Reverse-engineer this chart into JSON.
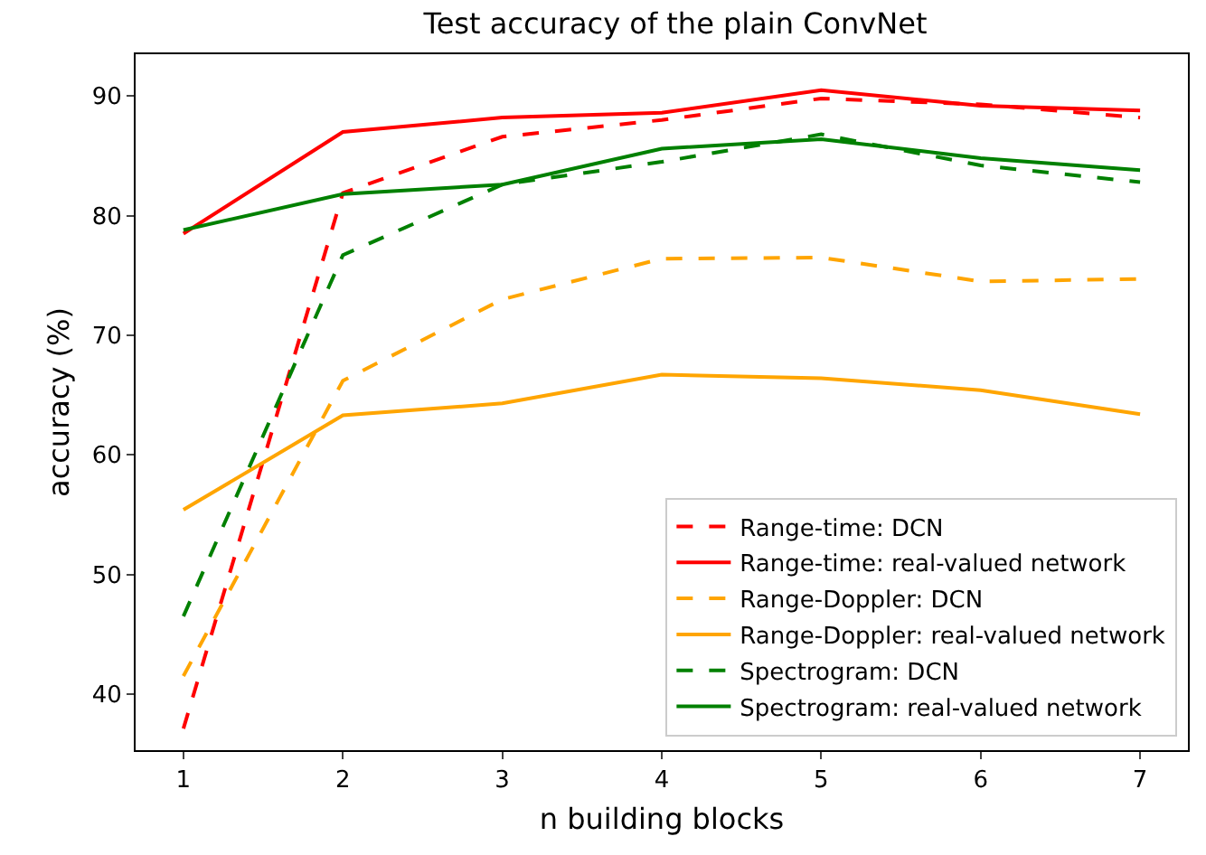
{
  "chart_data": {
    "type": "line",
    "title": "Test accuracy of the plain ConvNet",
    "xlabel": "n building blocks",
    "ylabel": "accuracy (%)",
    "x": [
      1,
      2,
      3,
      4,
      5,
      6,
      7
    ],
    "series": [
      {
        "name": "Range-time: DCN",
        "color": "#ff0000",
        "line_style": "dashed",
        "values": [
          37.1,
          81.9,
          86.6,
          88.0,
          89.8,
          89.3,
          88.2
        ]
      },
      {
        "name": "Range-time: real-valued network",
        "color": "#ff0000",
        "line_style": "solid",
        "values": [
          78.5,
          87.0,
          88.2,
          88.6,
          90.5,
          89.2,
          88.8
        ]
      },
      {
        "name": "Range-Doppler: DCN",
        "color": "#ffa500",
        "line_style": "dashed",
        "values": [
          41.5,
          66.2,
          73.0,
          76.4,
          76.5,
          74.5,
          74.7
        ]
      },
      {
        "name": "Range-Doppler: real-valued network",
        "color": "#ffa500",
        "line_style": "solid",
        "values": [
          55.4,
          63.3,
          64.3,
          66.7,
          66.4,
          65.4,
          63.4
        ]
      },
      {
        "name": "Spectrogram: DCN",
        "color": "#008000",
        "line_style": "dashed",
        "values": [
          46.5,
          76.7,
          82.6,
          84.5,
          86.8,
          84.2,
          82.8
        ]
      },
      {
        "name": "Spectrogram: real-valued network",
        "color": "#008000",
        "line_style": "solid",
        "values": [
          78.8,
          81.8,
          82.6,
          85.6,
          86.4,
          84.8,
          83.8
        ]
      }
    ],
    "xlim": [
      0.7,
      7.3
    ],
    "xticks": [
      1,
      2,
      3,
      4,
      5,
      6,
      7
    ],
    "ylim": [
      35.3,
      93.5
    ],
    "yticks": [
      40,
      50,
      60,
      70,
      80,
      90
    ],
    "grid": false,
    "legend": "bottom right",
    "marker": "none"
  }
}
